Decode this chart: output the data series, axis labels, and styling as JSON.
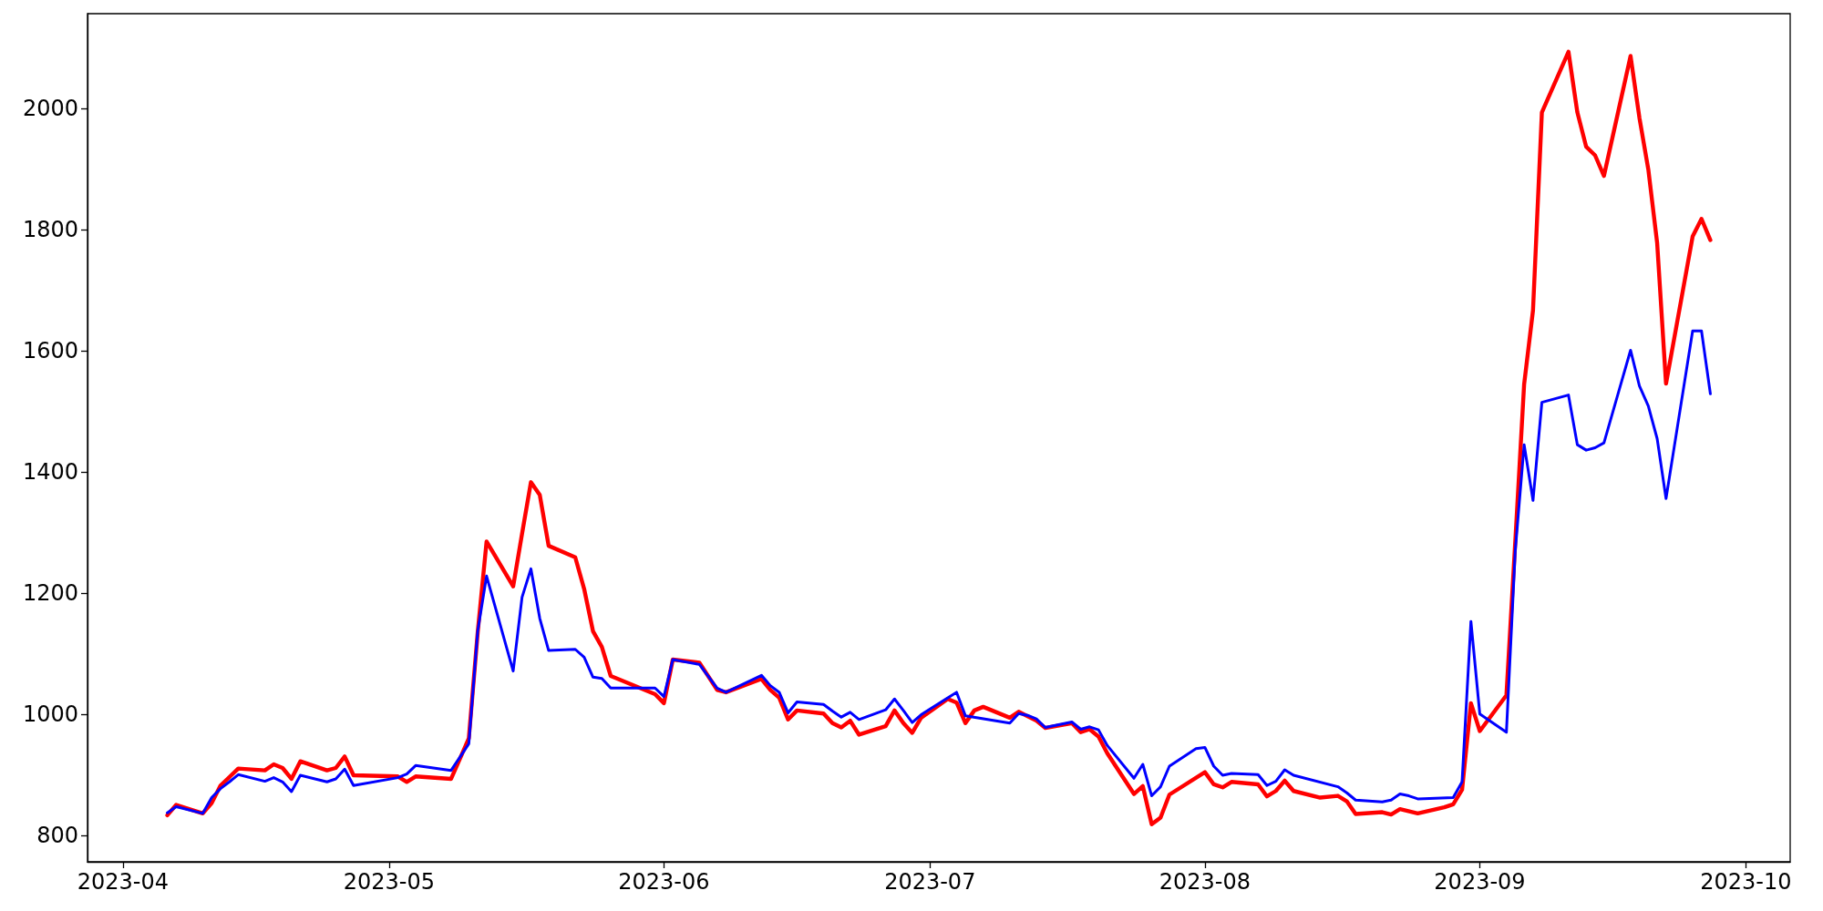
{
  "chart_data": {
    "type": "line",
    "xlim": [
      "2023-03-28",
      "2023-10-06"
    ],
    "xticks": [
      "2023-04",
      "2023-05",
      "2023-06",
      "2023-07",
      "2023-08",
      "2023-09",
      "2023-10"
    ],
    "ylim": [
      756,
      2157
    ],
    "yticks": [
      800,
      1000,
      1200,
      1400,
      1600,
      1800,
      2000
    ],
    "grid": false,
    "marker": "none",
    "line_style": "solid",
    "series": [
      {
        "color": "#ff0000",
        "x": [
          "2023-04-06",
          "2023-04-07",
          "2023-04-10",
          "2023-04-11",
          "2023-04-12",
          "2023-04-13",
          "2023-04-14",
          "2023-04-17",
          "2023-04-18",
          "2023-04-19",
          "2023-04-20",
          "2023-04-21",
          "2023-04-24",
          "2023-04-25",
          "2023-04-26",
          "2023-04-27",
          "2023-05-02",
          "2023-05-03",
          "2023-05-04",
          "2023-05-08",
          "2023-05-10",
          "2023-05-11",
          "2023-05-12",
          "2023-05-15",
          "2023-05-16",
          "2023-05-17",
          "2023-05-18",
          "2023-05-19",
          "2023-05-22",
          "2023-05-23",
          "2023-05-24",
          "2023-05-25",
          "2023-05-26",
          "2023-05-31",
          "2023-06-01",
          "2023-06-02",
          "2023-06-05",
          "2023-06-07",
          "2023-06-08",
          "2023-06-12",
          "2023-06-13",
          "2023-06-14",
          "2023-06-15",
          "2023-06-16",
          "2023-06-19",
          "2023-06-20",
          "2023-06-21",
          "2023-06-22",
          "2023-06-23",
          "2023-06-26",
          "2023-06-27",
          "2023-06-28",
          "2023-06-29",
          "2023-06-30",
          "2023-07-03",
          "2023-07-04",
          "2023-07-05",
          "2023-07-06",
          "2023-07-07",
          "2023-07-10",
          "2023-07-11",
          "2023-07-13",
          "2023-07-14",
          "2023-07-17",
          "2023-07-18",
          "2023-07-19",
          "2023-07-20",
          "2023-07-21",
          "2023-07-24",
          "2023-07-25",
          "2023-07-26",
          "2023-07-27",
          "2023-07-28",
          "2023-08-01",
          "2023-08-02",
          "2023-08-03",
          "2023-08-04",
          "2023-08-07",
          "2023-08-08",
          "2023-08-09",
          "2023-08-10",
          "2023-08-11",
          "2023-08-14",
          "2023-08-16",
          "2023-08-17",
          "2023-08-18",
          "2023-08-21",
          "2023-08-22",
          "2023-08-23",
          "2023-08-25",
          "2023-08-28",
          "2023-08-29",
          "2023-08-30",
          "2023-08-31",
          "2023-09-01",
          "2023-09-04",
          "2023-09-05",
          "2023-09-06",
          "2023-09-07",
          "2023-09-08",
          "2023-09-11",
          "2023-09-12",
          "2023-09-13",
          "2023-09-14",
          "2023-09-15",
          "2023-09-18",
          "2023-09-19",
          "2023-09-20",
          "2023-09-21",
          "2023-09-22",
          "2023-09-25",
          "2023-09-26",
          "2023-09-27"
        ],
        "values": [
          833,
          850,
          836,
          853,
          882,
          896,
          910,
          907,
          917,
          911,
          893,
          922,
          907,
          911,
          930,
          899,
          897,
          888,
          897,
          893,
          960,
          1135,
          1285,
          1211,
          1298,
          1383,
          1362,
          1278,
          1259,
          1207,
          1137,
          1111,
          1063,
          1033,
          1018,
          1090,
          1085,
          1040,
          1036,
          1058,
          1040,
          1027,
          991,
          1006,
          1001,
          985,
          978,
          989,
          966,
          980,
          1006,
          985,
          969,
          994,
          1025,
          1019,
          985,
          1006,
          1012,
          994,
          1004,
          989,
          977,
          985,
          970,
          975,
          963,
          935,
          868,
          881,
          818,
          829,
          867,
          904,
          884,
          879,
          888,
          884,
          864,
          873,
          890,
          873,
          862,
          865,
          856,
          835,
          838,
          834,
          843,
          836,
          846,
          851,
          875,
          1018,
          972,
          1031,
          1285,
          1545,
          1667,
          1994,
          2094,
          1994,
          1937,
          1923,
          1889,
          2087,
          1985,
          1900,
          1778,
          1546,
          1789,
          1818,
          1783
        ]
      },
      {
        "color": "#0000ff",
        "x": [
          "2023-04-06",
          "2023-04-07",
          "2023-04-10",
          "2023-04-11",
          "2023-04-12",
          "2023-04-13",
          "2023-04-14",
          "2023-04-17",
          "2023-04-18",
          "2023-04-19",
          "2023-04-20",
          "2023-04-21",
          "2023-04-24",
          "2023-04-25",
          "2023-04-26",
          "2023-04-27",
          "2023-05-02",
          "2023-05-03",
          "2023-05-04",
          "2023-05-08",
          "2023-05-10",
          "2023-05-11",
          "2023-05-12",
          "2023-05-15",
          "2023-05-16",
          "2023-05-17",
          "2023-05-18",
          "2023-05-19",
          "2023-05-22",
          "2023-05-23",
          "2023-05-24",
          "2023-05-25",
          "2023-05-26",
          "2023-05-31",
          "2023-06-01",
          "2023-06-02",
          "2023-06-05",
          "2023-06-07",
          "2023-06-08",
          "2023-06-12",
          "2023-06-13",
          "2023-06-14",
          "2023-06-15",
          "2023-06-16",
          "2023-06-19",
          "2023-06-20",
          "2023-06-21",
          "2023-06-22",
          "2023-06-23",
          "2023-06-26",
          "2023-06-27",
          "2023-06-28",
          "2023-06-29",
          "2023-06-30",
          "2023-07-04",
          "2023-07-05",
          "2023-07-10",
          "2023-07-11",
          "2023-07-12",
          "2023-07-13",
          "2023-07-14",
          "2023-07-17",
          "2023-07-18",
          "2023-07-19",
          "2023-07-20",
          "2023-07-21",
          "2023-07-24",
          "2023-07-25",
          "2023-07-26",
          "2023-07-27",
          "2023-07-28",
          "2023-07-31",
          "2023-08-01",
          "2023-08-02",
          "2023-08-03",
          "2023-08-04",
          "2023-08-07",
          "2023-08-08",
          "2023-08-09",
          "2023-08-10",
          "2023-08-11",
          "2023-08-16",
          "2023-08-17",
          "2023-08-18",
          "2023-08-21",
          "2023-08-22",
          "2023-08-23",
          "2023-08-24",
          "2023-08-25",
          "2023-08-29",
          "2023-08-30",
          "2023-08-31",
          "2023-09-01",
          "2023-09-04",
          "2023-09-05",
          "2023-09-06",
          "2023-09-07",
          "2023-09-08",
          "2023-09-11",
          "2023-09-12",
          "2023-09-13",
          "2023-09-14",
          "2023-09-15",
          "2023-09-18",
          "2023-09-19",
          "2023-09-20",
          "2023-09-21",
          "2023-09-22",
          "2023-09-25",
          "2023-09-26",
          "2023-09-27"
        ],
        "values": [
          837,
          847,
          836,
          862,
          877,
          888,
          900,
          889,
          895,
          888,
          872,
          899,
          888,
          893,
          909,
          882,
          895,
          901,
          915,
          907,
          951,
          1137,
          1228,
          1071,
          1193,
          1240,
          1158,
          1105,
          1107,
          1094,
          1061,
          1059,
          1043,
          1043,
          1029,
          1090,
          1082,
          1043,
          1036,
          1064,
          1047,
          1036,
          1002,
          1020,
          1016,
          1005,
          995,
          1003,
          991,
          1007,
          1025,
          1006,
          986,
          999,
          1036,
          997,
          985,
          1001,
          998,
          992,
          978,
          987,
          975,
          979,
          974,
          948,
          894,
          917,
          865,
          880,
          914,
          943,
          945,
          914,
          899,
          902,
          900,
          882,
          889,
          908,
          899,
          880,
          870,
          858,
          855,
          858,
          868,
          865,
          860,
          862,
          888,
          1153,
          1000,
          970,
          1270,
          1445,
          1353,
          1515,
          1527,
          1445,
          1436,
          1440,
          1448,
          1601,
          1542,
          1509,
          1455,
          1356,
          1633,
          1633,
          1529
        ]
      }
    ]
  }
}
